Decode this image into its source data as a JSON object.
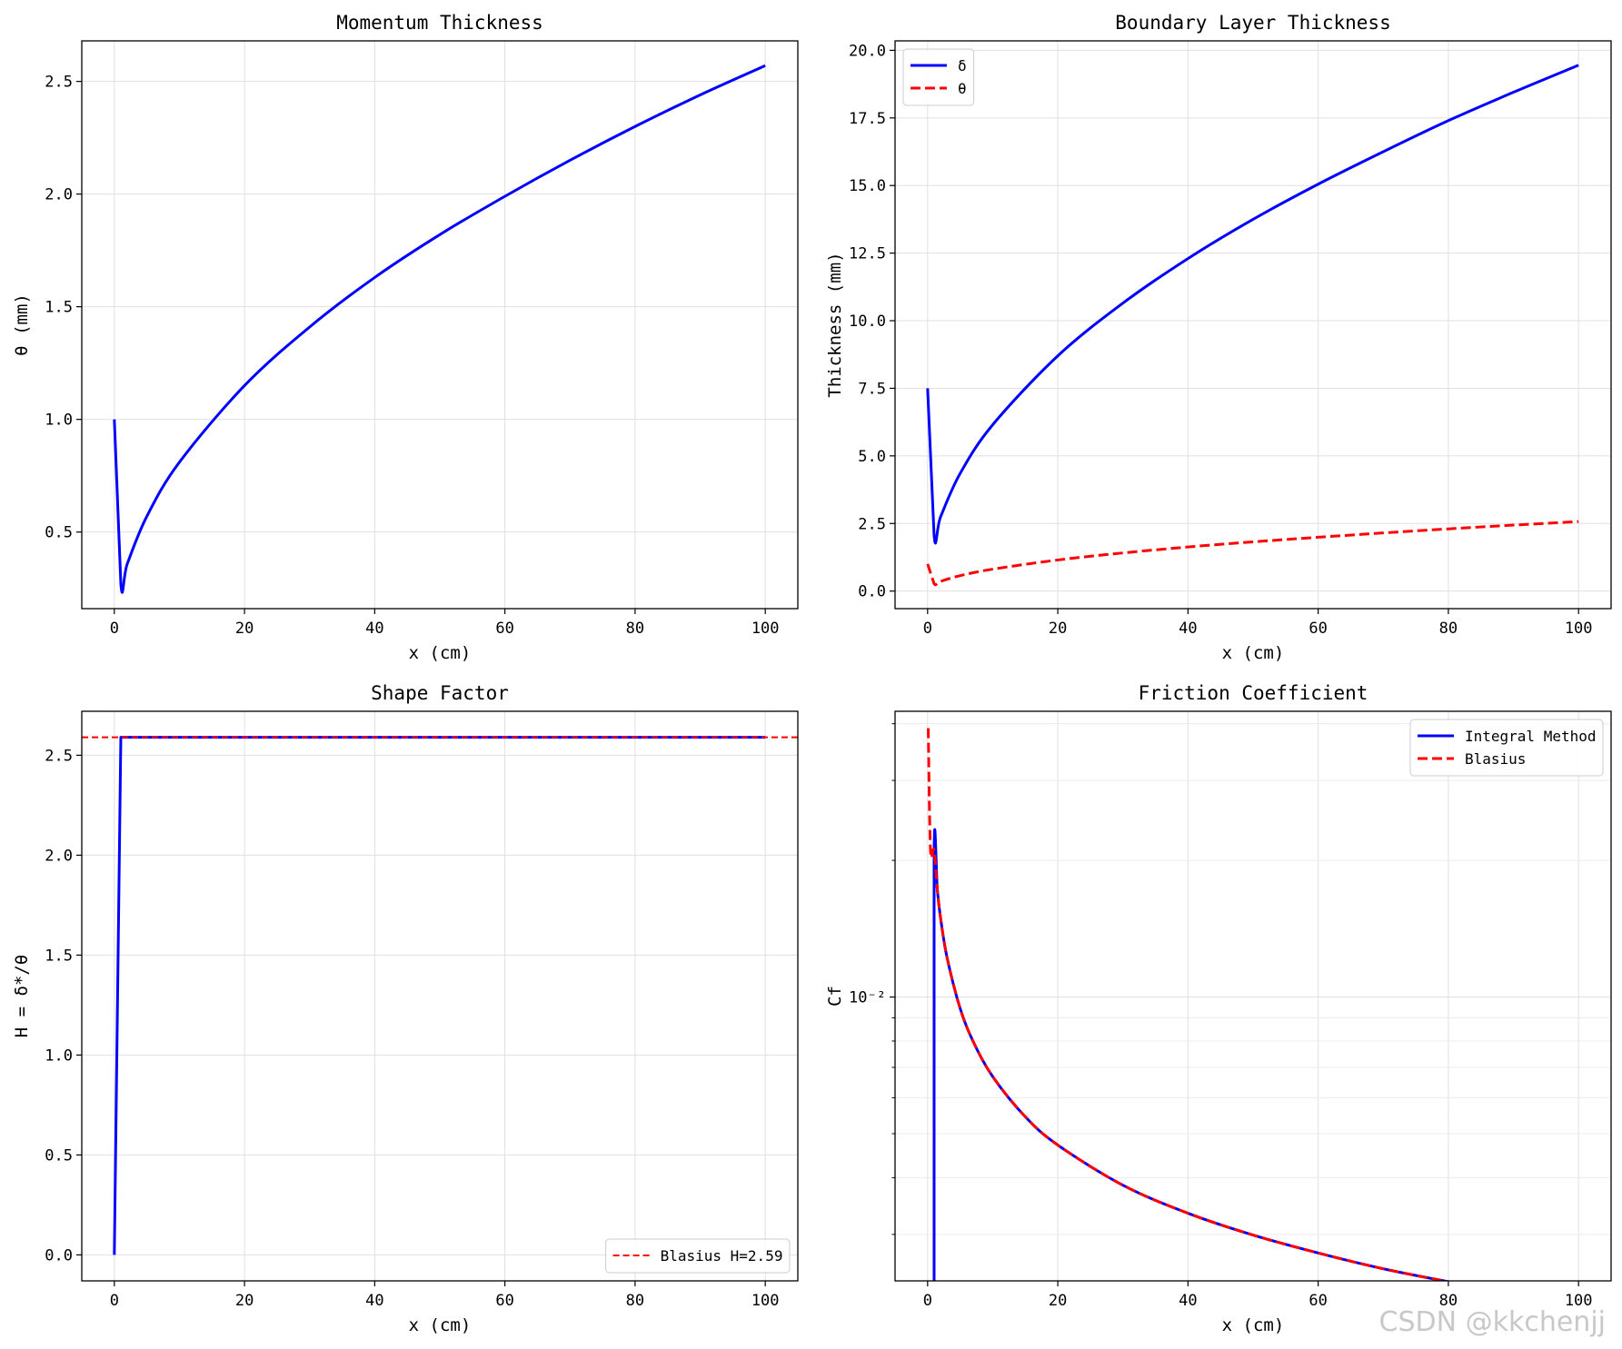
{
  "watermark": "CSDN @kkchenjj",
  "colors": {
    "blue": "#0000ff",
    "red": "#ff0000",
    "grid": "#e0e0e0"
  },
  "chart_data": [
    {
      "type": "line",
      "title": "Momentum Thickness",
      "xlabel": "x (cm)",
      "ylabel": "θ (mm)",
      "xlim": [
        -5,
        105
      ],
      "ylim": [
        0.16,
        2.68
      ],
      "xticks": [
        0,
        20,
        40,
        60,
        80,
        100
      ],
      "yticks": [
        0.5,
        1.0,
        1.5,
        2.0,
        2.5
      ],
      "ytick_labels": [
        "0.5",
        "1.0",
        "1.5",
        "2.0",
        "2.5"
      ],
      "grid": true,
      "series": [
        {
          "color": "#0000ff",
          "dash": "solid",
          "x": [
            0,
            1,
            2,
            5,
            10,
            20,
            30,
            40,
            50,
            60,
            70,
            80,
            90,
            100
          ],
          "y": [
            1.0,
            0.27,
            0.36,
            0.57,
            0.81,
            1.15,
            1.41,
            1.63,
            1.82,
            1.99,
            2.15,
            2.3,
            2.44,
            2.57
          ]
        }
      ]
    },
    {
      "type": "line",
      "title": "Boundary Layer Thickness",
      "xlabel": "x (cm)",
      "ylabel": "Thickness (mm)",
      "xlim": [
        -5,
        105
      ],
      "ylim": [
        -0.65,
        20.35
      ],
      "xticks": [
        0,
        20,
        40,
        60,
        80,
        100
      ],
      "yticks": [
        0,
        2.5,
        5,
        7.5,
        10,
        12.5,
        15,
        17.5,
        20
      ],
      "ytick_labels": [
        "0.0",
        "2.5",
        "5.0",
        "7.5",
        "10.0",
        "12.5",
        "15.0",
        "17.5",
        "20.0"
      ],
      "grid": true,
      "legend": "upper-left",
      "series": [
        {
          "name": "δ",
          "color": "#0000ff",
          "dash": "solid",
          "x": [
            0,
            1,
            2,
            5,
            10,
            20,
            30,
            40,
            50,
            60,
            70,
            80,
            90,
            100
          ],
          "y": [
            7.5,
            2.05,
            2.75,
            4.35,
            6.15,
            8.7,
            10.65,
            12.3,
            13.75,
            15.05,
            16.25,
            17.4,
            18.45,
            19.45
          ]
        },
        {
          "name": "θ",
          "color": "#ff0000",
          "dash": "dashed",
          "x": [
            0,
            1,
            2,
            5,
            10,
            20,
            30,
            40,
            50,
            60,
            70,
            80,
            90,
            100
          ],
          "y": [
            1.0,
            0.27,
            0.36,
            0.57,
            0.81,
            1.15,
            1.41,
            1.63,
            1.82,
            1.99,
            2.15,
            2.3,
            2.44,
            2.57
          ]
        }
      ]
    },
    {
      "type": "line",
      "title": "Shape Factor",
      "xlabel": "x (cm)",
      "ylabel": "H = δ*/θ",
      "xlim": [
        -5,
        105
      ],
      "ylim": [
        -0.13,
        2.72
      ],
      "xticks": [
        0,
        20,
        40,
        60,
        80,
        100
      ],
      "yticks": [
        0,
        0.5,
        1.0,
        1.5,
        2.0,
        2.5
      ],
      "ytick_labels": [
        "0.0",
        "0.5",
        "1.0",
        "1.5",
        "2.0",
        "2.5"
      ],
      "grid": true,
      "legend": "lower-right",
      "series": [
        {
          "color": "#0000ff",
          "dash": "solid",
          "x": [
            0,
            1,
            100
          ],
          "y": [
            0.0,
            2.59,
            2.59
          ]
        },
        {
          "name": "Blasius H=2.59",
          "color": "#ff0000",
          "dash": "dashed",
          "thin": true,
          "x": [
            -5,
            105
          ],
          "y": [
            2.59,
            2.59
          ]
        }
      ]
    },
    {
      "type": "line",
      "title": "Friction Coefficient",
      "xlabel": "x (cm)",
      "ylabel": "Cf",
      "xlim": [
        -5,
        105
      ],
      "yscale": "log",
      "ylim": [
        0.00237,
        0.0426
      ],
      "xticks": [
        0,
        20,
        40,
        60,
        80,
        100
      ],
      "ytick_major": [
        0.01
      ],
      "ytick_labels": [
        "10⁻²"
      ],
      "ytick_minor": [
        0.003,
        0.004,
        0.005,
        0.006,
        0.007,
        0.008,
        0.009,
        0.02,
        0.03,
        0.04
      ],
      "grid": true,
      "legend": "upper-right",
      "series": [
        {
          "name": "Integral Method",
          "color": "#0000ff",
          "dash": "solid",
          "x": [
            1,
            1,
            1.5,
            2,
            3,
            5,
            7,
            10,
            15,
            20,
            30,
            40,
            50,
            60,
            70,
            80,
            90,
            100
          ],
          "y": [
            0.002,
            0.0205,
            0.0172,
            0.0149,
            0.0122,
            0.00944,
            0.00798,
            0.00668,
            0.00545,
            0.00472,
            0.00385,
            0.00334,
            0.00299,
            0.00273,
            0.00252,
            0.00236,
            0.00222,
            0.00211
          ]
        },
        {
          "name": "Blasius",
          "color": "#ff0000",
          "dash": "dashed",
          "x": [
            0.1,
            0.25,
            0.5,
            1,
            1.5,
            2,
            3,
            5,
            7,
            10,
            15,
            20,
            30,
            40,
            50,
            60,
            70,
            80,
            90,
            100
          ],
          "y": [
            0.0391,
            0.0276,
            0.0205,
            0.0211,
            0.0172,
            0.0149,
            0.0122,
            0.00944,
            0.00798,
            0.00668,
            0.00545,
            0.00472,
            0.00385,
            0.00334,
            0.00299,
            0.00273,
            0.00252,
            0.00236,
            0.00222,
            0.00211
          ]
        }
      ]
    }
  ]
}
